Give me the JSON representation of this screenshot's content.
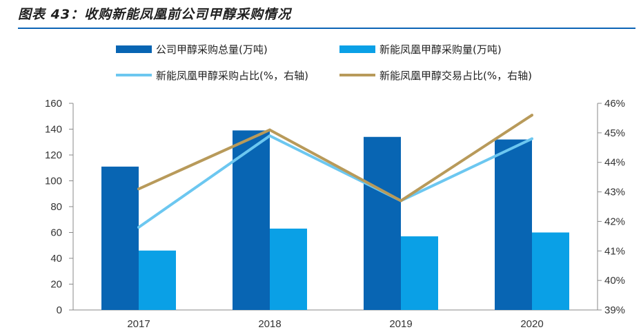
{
  "figure_title": "图表 43：收购新能凤凰前公司甲醇采购情况",
  "colors": {
    "total_bar": "#0865b3",
    "xnfh_bar": "#0aa0e6",
    "purchase_share_line": "#6cc7f0",
    "trade_share_line": "#b89a5a",
    "title_rule": "#0a63b5",
    "axis": "#888888"
  },
  "chart_data": {
    "type": "bar",
    "categories": [
      "2017",
      "2018",
      "2019",
      "2020"
    ],
    "series": [
      {
        "name": "公司甲醇采购总量(万吨)",
        "type": "bar",
        "axis": "left",
        "values": [
          111,
          139,
          134,
          132
        ]
      },
      {
        "name": "新能凤凰甲醇采购量(万吨)",
        "type": "bar",
        "axis": "left",
        "values": [
          46,
          63,
          57,
          60
        ]
      },
      {
        "name": "新能凤凰甲醇采购占比(%，右轴)",
        "type": "line",
        "axis": "right",
        "values": [
          41.8,
          44.9,
          42.7,
          44.8
        ]
      },
      {
        "name": "新能凤凰甲醇交易占比(%，右轴)",
        "type": "line",
        "axis": "right",
        "values": [
          43.1,
          45.1,
          42.7,
          45.6
        ]
      }
    ],
    "y_left": {
      "min": 0,
      "max": 160,
      "ticks": [
        "0",
        "20",
        "40",
        "60",
        "80",
        "100",
        "120",
        "140",
        "160"
      ]
    },
    "y_right": {
      "min": 39,
      "max": 46,
      "ticks": [
        "39%",
        "40%",
        "41%",
        "42%",
        "43%",
        "44%",
        "45%",
        "46%"
      ]
    },
    "grid": false,
    "legend_position": "top"
  }
}
